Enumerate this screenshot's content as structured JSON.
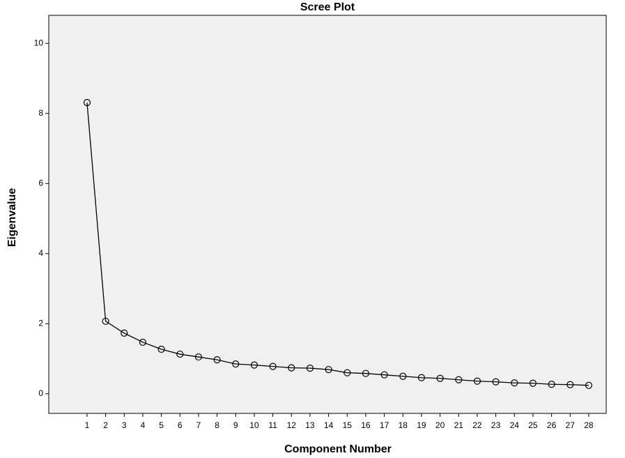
{
  "chart_data": {
    "type": "line",
    "title": "Scree Plot",
    "x_label": "Component Number",
    "y_label": "Eigenvalue",
    "x": [
      1,
      2,
      3,
      4,
      5,
      6,
      7,
      8,
      9,
      10,
      11,
      12,
      13,
      14,
      15,
      16,
      17,
      18,
      19,
      20,
      21,
      22,
      23,
      24,
      25,
      26,
      27,
      28
    ],
    "values": [
      8.31,
      2.07,
      1.73,
      1.47,
      1.27,
      1.13,
      1.05,
      0.97,
      0.85,
      0.82,
      0.78,
      0.74,
      0.73,
      0.69,
      0.6,
      0.58,
      0.54,
      0.5,
      0.46,
      0.44,
      0.4,
      0.36,
      0.34,
      0.31,
      0.3,
      0.27,
      0.26,
      0.24
    ],
    "color": "#000000",
    "xlim": [
      -1.06,
      28.94
    ],
    "xticks": [
      1,
      2,
      3,
      4,
      5,
      6,
      7,
      8,
      9,
      10,
      11,
      12,
      13,
      14,
      15,
      16,
      17,
      18,
      19,
      20,
      21,
      22,
      23,
      24,
      25,
      26,
      27,
      28
    ],
    "ylim": [
      -0.56,
      10.8
    ],
    "yticks": [
      0,
      2,
      4,
      6,
      8,
      10
    ],
    "grid": false
  }
}
